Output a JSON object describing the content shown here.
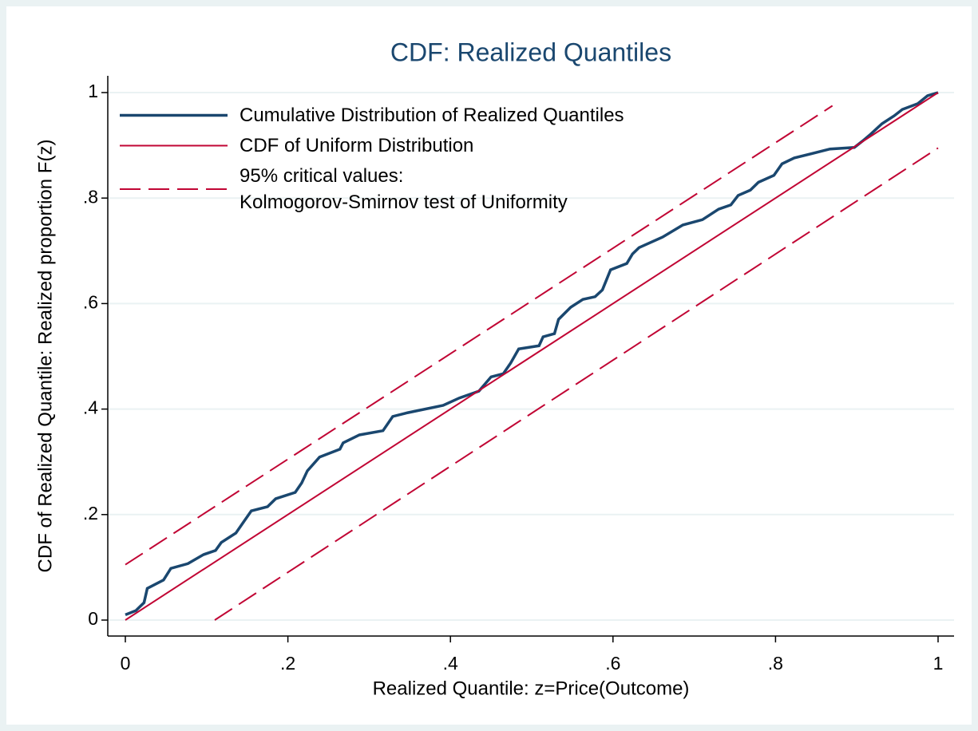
{
  "chart_data": {
    "type": "line",
    "title": "CDF: Realized Quantiles",
    "xlabel": "Realized Quantile: z=Price(Outcome)",
    "ylabel": "CDF of Realized Quantile: Realized proportion F(z)",
    "xlim": [
      0,
      1
    ],
    "ylim": [
      0,
      1
    ],
    "xticks": [
      0,
      {
        "value": 0.2,
        "label": ".2"
      },
      {
        "value": 0.4,
        "label": ".4"
      },
      {
        "value": 0.6,
        "label": ".6"
      },
      {
        "value": 0.8,
        "label": ".8"
      },
      1
    ],
    "yticks": [
      0,
      {
        "value": 0.2,
        "label": ".2"
      },
      {
        "value": 0.4,
        "label": ".4"
      },
      {
        "value": 0.6,
        "label": ".6"
      },
      {
        "value": 0.8,
        "label": ".8"
      },
      1
    ],
    "grid": true,
    "legend": "top-left",
    "series": [
      {
        "name": "Cumulative Distribution of Realized Quantiles",
        "color": "#1a476f",
        "style": "solid",
        "x": [
          0,
          0.013,
          0.023,
          0.027,
          0.047,
          0.056,
          0.077,
          0.096,
          0.111,
          0.118,
          0.136,
          0.145,
          0.155,
          0.175,
          0.185,
          0.209,
          0.217,
          0.224,
          0.239,
          0.264,
          0.268,
          0.288,
          0.317,
          0.329,
          0.347,
          0.391,
          0.411,
          0.435,
          0.45,
          0.465,
          0.474,
          0.484,
          0.509,
          0.514,
          0.528,
          0.533,
          0.548,
          0.563,
          0.578,
          0.587,
          0.597,
          0.617,
          0.624,
          0.632,
          0.661,
          0.686,
          0.71,
          0.73,
          0.745,
          0.754,
          0.769,
          0.779,
          0.798,
          0.808,
          0.823,
          0.867,
          0.897,
          0.907,
          0.917,
          0.931,
          0.946,
          0.956,
          0.975,
          0.987,
          1
        ],
        "values": [
          0.01,
          0.018,
          0.033,
          0.06,
          0.076,
          0.098,
          0.107,
          0.124,
          0.132,
          0.147,
          0.165,
          0.185,
          0.207,
          0.215,
          0.23,
          0.242,
          0.26,
          0.283,
          0.309,
          0.324,
          0.336,
          0.351,
          0.359,
          0.386,
          0.393,
          0.407,
          0.421,
          0.434,
          0.461,
          0.467,
          0.487,
          0.514,
          0.52,
          0.537,
          0.543,
          0.57,
          0.593,
          0.608,
          0.613,
          0.626,
          0.664,
          0.676,
          0.694,
          0.706,
          0.726,
          0.749,
          0.759,
          0.779,
          0.787,
          0.805,
          0.815,
          0.83,
          0.843,
          0.865,
          0.876,
          0.893,
          0.896,
          0.908,
          0.921,
          0.941,
          0.956,
          0.968,
          0.979,
          0.994,
          1
        ]
      },
      {
        "name": "CDF of Uniform Distribution",
        "color": "#c10534",
        "style": "solid",
        "x": [
          0,
          1
        ],
        "values": [
          0,
          1
        ]
      },
      {
        "name": "95% critical values:\nKolmogorov-Smirnov test of Uniformity",
        "color": "#c10534",
        "style": "dashed",
        "x": [
          0,
          0.87
        ],
        "values": [
          0.105,
          0.975
        ]
      },
      {
        "color": "#c10534",
        "style": "dashed",
        "x": [
          0.11,
          1
        ],
        "values": [
          0,
          0.895
        ]
      }
    ]
  }
}
